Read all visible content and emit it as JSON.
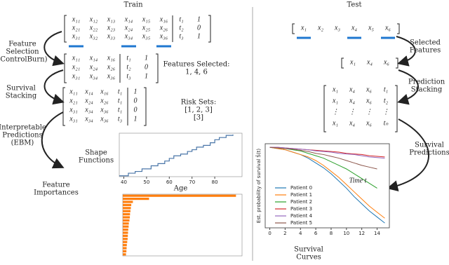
{
  "train": {
    "title": "Train",
    "matrix_features": [
      [
        "x₁₁",
        "x₁₂",
        "x₁₃",
        "x₁₄",
        "x₁₅",
        "x₁₆",
        "t₁",
        "1"
      ],
      [
        "x₂₁",
        "x₂₂",
        "x₂₃",
        "x₂₄",
        "x₂₅",
        "x₂₆",
        "t₂",
        "0"
      ],
      [
        "x₃₁",
        "x₃₂",
        "x₃₃",
        "x₃₄",
        "x₃₅",
        "x₃₆",
        "t₃",
        "1"
      ]
    ],
    "matrix_selected": [
      [
        "x₁₁",
        "x₁₄",
        "x₁₆",
        "t₁",
        "1"
      ],
      [
        "x₂₁",
        "x₂₄",
        "x₂₆",
        "t₂",
        "0"
      ],
      [
        "x₃₁",
        "x₃₄",
        "x₃₆",
        "t₃",
        "1"
      ]
    ],
    "matrix_stacked": [
      [
        "x₁₁",
        "x₁₄",
        "x₁₆",
        "t₁",
        "1"
      ],
      [
        "x₂₁",
        "x₂₄",
        "x₂₆",
        "t₁",
        "0"
      ],
      [
        "x₃₁",
        "x₃₄",
        "x₃₆",
        "t₁",
        "0"
      ],
      [
        "x₃₁",
        "x₃₄",
        "x₃₆",
        "t₃",
        "1"
      ]
    ],
    "feature_selection": [
      "Feature",
      "Selection",
      "(ControlBurn)"
    ],
    "survival_stacking": [
      "Survival",
      "Stacking"
    ],
    "interpretable_predictions": [
      "Interpretable",
      "Predictions",
      "(EBM)"
    ],
    "features_selected": [
      "Features Selected:",
      "1, 4, 6"
    ],
    "risk_sets": [
      "Risk Sets:",
      "[1, 2, 3]",
      "[3]"
    ],
    "shape_functions": [
      "Shape",
      "Functions"
    ],
    "feature_importances": [
      "Feature",
      "Importances"
    ]
  },
  "test": {
    "title": "Test",
    "matrix_features": [
      [
        "x₁",
        "x₂",
        "x₃",
        "x₄",
        "x₅",
        "x₆"
      ]
    ],
    "matrix_selected": [
      [
        "x₁",
        "x₄",
        "x₆"
      ]
    ],
    "matrix_stacked": [
      [
        "x₁",
        "x₄",
        "x₆",
        "t₁"
      ],
      [
        "x₁",
        "x₄",
        "x₆",
        "t₂"
      ],
      [
        "⋮",
        "⋮",
        "⋮",
        "⋮"
      ],
      [
        "x₁",
        "x₄",
        "x₆",
        "tₙ"
      ]
    ],
    "selected_features": [
      "Selected",
      "Features"
    ],
    "prediction_stacking": [
      "Prediction",
      "Stacking"
    ],
    "survival_predictions": [
      "Survival",
      "Predictions"
    ],
    "survival_curves": [
      "Survival",
      "Curves"
    ]
  },
  "chart_data": [
    {
      "type": "step",
      "x_label": "Age",
      "color": "#4a76a8",
      "x": [
        38,
        42,
        45,
        48,
        52,
        55,
        58,
        60,
        62,
        65,
        68,
        70,
        72,
        75,
        78,
        80,
        82,
        85,
        88
      ],
      "values": [
        0.02,
        0.08,
        0.12,
        0.18,
        0.25,
        0.3,
        0.36,
        0.42,
        0.48,
        0.52,
        0.58,
        0.62,
        0.68,
        0.72,
        0.78,
        0.85,
        0.9,
        0.95,
        0.97
      ],
      "xlim": [
        38,
        92
      ],
      "ylim": [
        0,
        1
      ],
      "xticks": [
        40,
        50,
        60,
        70,
        80
      ]
    },
    {
      "type": "barh",
      "color": "#ff7f0e",
      "values": [
        5.6,
        1.3,
        0.5,
        0.42,
        0.4,
        0.38,
        0.36,
        0.35,
        0.33,
        0.3,
        0.29,
        0.27,
        0.26,
        0.25,
        0.24,
        0.22,
        0.2,
        0.19,
        0.18,
        0.16
      ],
      "xlim": [
        0,
        5.9
      ]
    },
    {
      "type": "line",
      "x_label": "Time t",
      "y_label": "Est. probability of survival Ŝ(t)",
      "x": [
        0,
        1,
        2,
        3,
        4,
        5,
        6,
        7,
        8,
        9,
        10,
        11,
        12,
        13,
        14,
        15
      ],
      "xlim": [
        -0.6,
        15.6
      ],
      "ylim": [
        0.33,
        1.03
      ],
      "xticks": [
        0,
        2,
        4,
        6,
        8,
        10,
        12,
        14
      ],
      "series": [
        {
          "name": "Patient 0",
          "color": "#1f77b4",
          "values": [
            1,
            0.99,
            0.98,
            0.96,
            0.94,
            0.91,
            0.87,
            0.83,
            0.78,
            0.72,
            0.66,
            0.59,
            0.53,
            0.47,
            0.42,
            0.37
          ]
        },
        {
          "name": "Patient 1",
          "color": "#ff7f0e",
          "values": [
            1,
            0.99,
            0.98,
            0.96,
            0.94,
            0.92,
            0.89,
            0.85,
            0.8,
            0.75,
            0.69,
            0.63,
            0.57,
            0.51,
            0.46,
            0.41
          ]
        },
        {
          "name": "Patient 2",
          "color": "#2ca02c",
          "values": [
            1,
            0.995,
            0.99,
            0.98,
            0.97,
            0.95,
            0.93,
            0.91,
            0.88,
            0.85,
            0.82,
            0.78,
            0.74,
            0.7,
            0.66,
            null
          ]
        },
        {
          "name": "Patient 3",
          "color": "#d62728",
          "values": [
            1,
            1,
            0.995,
            0.99,
            0.985,
            0.98,
            0.975,
            0.97,
            0.965,
            0.96,
            0.95,
            0.945,
            0.94,
            0.93,
            0.925,
            0.92
          ]
        },
        {
          "name": "Patient 4",
          "color": "#9467bd",
          "values": [
            1,
            1,
            0.995,
            0.99,
            0.985,
            0.98,
            0.97,
            0.965,
            0.96,
            0.95,
            0.945,
            0.94,
            0.93,
            0.92,
            0.915,
            0.91
          ]
        },
        {
          "name": "Patient 5",
          "color": "#8c564b",
          "values": [
            1,
            0.995,
            0.99,
            0.985,
            0.975,
            0.965,
            0.95,
            0.94,
            0.925,
            0.91,
            0.89,
            0.87,
            0.85,
            0.835,
            0.82,
            null
          ]
        }
      ]
    }
  ]
}
